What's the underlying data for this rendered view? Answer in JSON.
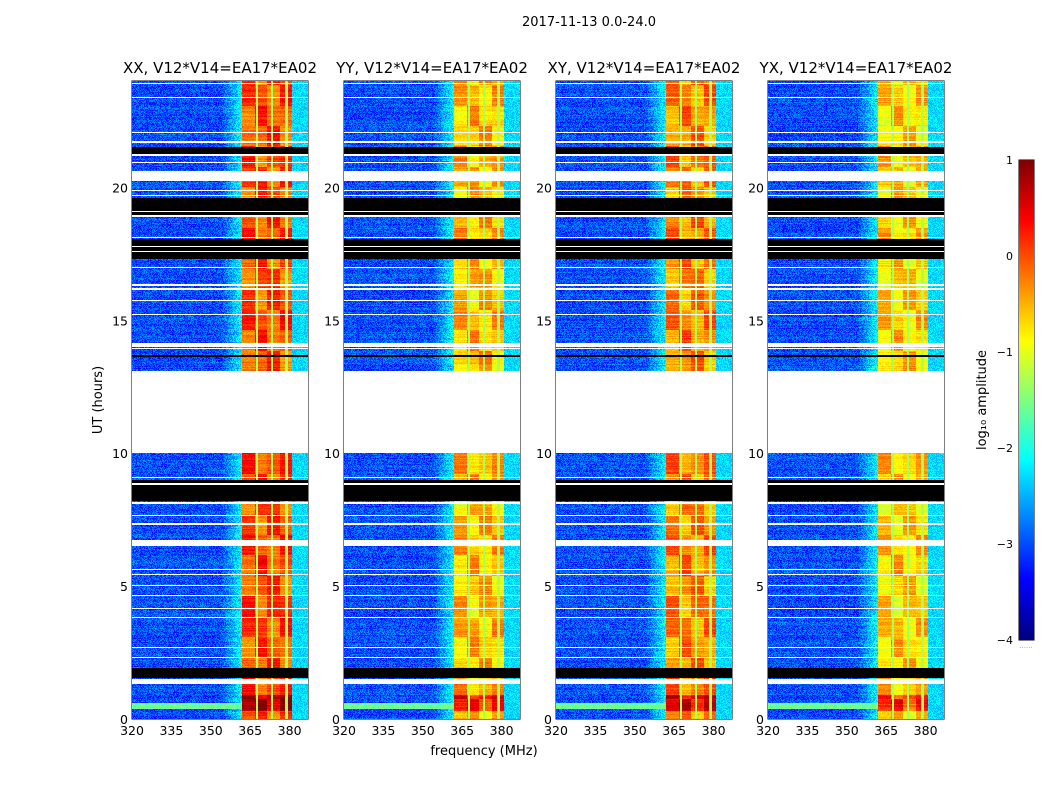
{
  "chart_data": {
    "type": "heatmap",
    "title": "2017-11-13 0.0-24.0",
    "xlabel": "frequency (MHz)",
    "ylabel": "UT (hours)",
    "xlim": [
      320,
      387
    ],
    "ylim": [
      0,
      24
    ],
    "xticks": [
      320,
      335,
      350,
      365,
      380
    ],
    "yticks": [
      0,
      5,
      10,
      15,
      20
    ],
    "panels": [
      {
        "title": "XX, V12*V14=EA17*EA02",
        "band_level": 0.0
      },
      {
        "title": "YY, V12*V14=EA17*EA02",
        "band_level": -0.55
      },
      {
        "title": "XY, V12*V14=EA17*EA02",
        "band_level": -0.3
      },
      {
        "title": "YX, V12*V14=EA17*EA02",
        "band_level": -0.65
      }
    ],
    "background_level": -3.0,
    "bright_band_mhz": [
      362,
      381
    ],
    "channel_gaps_mhz": [
      367.5,
      373.2,
      378.8
    ],
    "blank_hours": [
      [
        10.0,
        13.1
      ],
      [
        20.3,
        20.6
      ],
      [
        6.5,
        6.7
      ],
      [
        14.0,
        14.15
      ],
      [
        1.3,
        1.5
      ],
      [
        2.3,
        2.35
      ],
      [
        21.65,
        21.75
      ]
    ],
    "flagged_black_hours": [
      [
        8.2,
        9.0
      ],
      [
        18.9,
        19.6
      ],
      [
        17.3,
        18.05
      ],
      [
        21.2,
        21.5
      ],
      [
        1.55,
        1.9
      ],
      [
        13.6,
        13.7
      ]
    ],
    "colorbar": {
      "label": "log₁₀ amplitude",
      "range": [
        -4,
        1
      ],
      "ticks": [
        -4,
        -3,
        -2,
        -1,
        0,
        1
      ],
      "tick_labels": [
        "−4",
        "−3",
        "−2",
        "−1",
        "0",
        "1"
      ],
      "colormap": "jet",
      "footer": "......"
    }
  }
}
